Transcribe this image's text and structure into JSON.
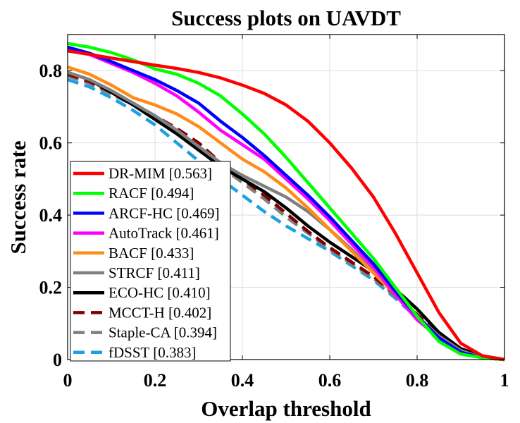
{
  "chart_data": {
    "type": "line",
    "title": "Success plots on UAVDT",
    "xlabel": "Overlap threshold",
    "ylabel": "Success rate",
    "xlim": [
      0,
      1
    ],
    "ylim": [
      0,
      0.9
    ],
    "xticks": [
      0,
      0.2,
      0.4,
      0.6,
      0.8,
      1
    ],
    "xtick_labels": [
      "0",
      "0.2",
      "0.4",
      "0.6",
      "0.8",
      "1"
    ],
    "yticks": [
      0,
      0.2,
      0.4,
      0.6,
      0.8
    ],
    "ytick_labels": [
      "0",
      "0.2",
      "0.4",
      "0.6",
      "0.8"
    ],
    "grid": true,
    "legend_position": "bottom-left",
    "x": [
      0,
      0.05,
      0.1,
      0.15,
      0.2,
      0.25,
      0.3,
      0.35,
      0.4,
      0.45,
      0.5,
      0.55,
      0.6,
      0.65,
      0.7,
      0.75,
      0.8,
      0.85,
      0.9,
      0.95,
      1
    ],
    "series": [
      {
        "name": "DR-MIM",
        "label": "DR-MIM [0.563]",
        "color": "#ff0000",
        "dash": "solid",
        "values": [
          0.855,
          0.845,
          0.835,
          0.825,
          0.815,
          0.806,
          0.795,
          0.78,
          0.76,
          0.737,
          0.705,
          0.66,
          0.6,
          0.53,
          0.45,
          0.35,
          0.24,
          0.13,
          0.045,
          0.01,
          0.0
        ]
      },
      {
        "name": "RACF",
        "label": "RACF [0.494]",
        "color": "#00ff00",
        "dash": "solid",
        "values": [
          0.875,
          0.865,
          0.85,
          0.83,
          0.805,
          0.79,
          0.765,
          0.73,
          0.68,
          0.625,
          0.56,
          0.49,
          0.42,
          0.35,
          0.28,
          0.2,
          0.12,
          0.05,
          0.015,
          0.005,
          0.0
        ]
      },
      {
        "name": "ARCF-HC",
        "label": "ARCF-HC [0.469]",
        "color": "#0000ff",
        "dash": "solid",
        "values": [
          0.865,
          0.848,
          0.825,
          0.8,
          0.775,
          0.745,
          0.71,
          0.66,
          0.615,
          0.565,
          0.51,
          0.455,
          0.395,
          0.33,
          0.265,
          0.19,
          0.12,
          0.06,
          0.02,
          0.005,
          0.0
        ]
      },
      {
        "name": "AutoTrack",
        "label": "AutoTrack [0.461]",
        "color": "#ff00ff",
        "dash": "solid",
        "values": [
          0.862,
          0.845,
          0.82,
          0.795,
          0.765,
          0.73,
          0.685,
          0.635,
          0.595,
          0.555,
          0.5,
          0.445,
          0.385,
          0.32,
          0.255,
          0.18,
          0.11,
          0.06,
          0.02,
          0.005,
          0.0
        ]
      },
      {
        "name": "BACF",
        "label": "BACF [0.433]",
        "color": "#ff8c1a",
        "dash": "solid",
        "values": [
          0.81,
          0.79,
          0.76,
          0.725,
          0.705,
          0.68,
          0.645,
          0.6,
          0.555,
          0.52,
          0.475,
          0.42,
          0.36,
          0.3,
          0.24,
          0.18,
          0.12,
          0.06,
          0.02,
          0.005,
          0.0
        ]
      },
      {
        "name": "STRCF",
        "label": "STRCF [0.411]",
        "color": "#808080",
        "dash": "solid",
        "values": [
          0.795,
          0.775,
          0.745,
          0.71,
          0.675,
          0.635,
          0.59,
          0.545,
          0.51,
          0.48,
          0.45,
          0.41,
          0.36,
          0.305,
          0.245,
          0.18,
          0.12,
          0.065,
          0.025,
          0.005,
          0.0
        ]
      },
      {
        "name": "ECO-HC",
        "label": "ECO-HC [0.410]",
        "color": "#000000",
        "dash": "solid",
        "values": [
          0.795,
          0.775,
          0.74,
          0.705,
          0.665,
          0.625,
          0.58,
          0.535,
          0.5,
          0.465,
          0.42,
          0.37,
          0.325,
          0.285,
          0.245,
          0.195,
          0.14,
          0.075,
          0.03,
          0.01,
          0.0
        ]
      },
      {
        "name": "MCCT-H",
        "label": "MCCT-H [0.402]",
        "color": "#800000",
        "dash": "dashed",
        "values": [
          0.79,
          0.77,
          0.74,
          0.71,
          0.675,
          0.64,
          0.6,
          0.545,
          0.5,
          0.455,
          0.405,
          0.355,
          0.31,
          0.27,
          0.23,
          0.18,
          0.125,
          0.07,
          0.025,
          0.005,
          0.0
        ]
      },
      {
        "name": "Staple-CA",
        "label": "Staple-CA [0.394]",
        "color": "#7f7f7f",
        "dash": "dashed",
        "values": [
          0.785,
          0.765,
          0.735,
          0.705,
          0.67,
          0.63,
          0.585,
          0.535,
          0.49,
          0.445,
          0.395,
          0.35,
          0.305,
          0.265,
          0.225,
          0.175,
          0.12,
          0.07,
          0.025,
          0.005,
          0.0
        ]
      },
      {
        "name": "fDSST",
        "label": "fDSST [0.383]",
        "color": "#1ba1e2",
        "dash": "dashed",
        "values": [
          0.775,
          0.755,
          0.725,
          0.69,
          0.65,
          0.6,
          0.55,
          0.5,
          0.455,
          0.41,
          0.37,
          0.335,
          0.3,
          0.26,
          0.22,
          0.17,
          0.115,
          0.065,
          0.025,
          0.005,
          0.0
        ]
      }
    ]
  }
}
